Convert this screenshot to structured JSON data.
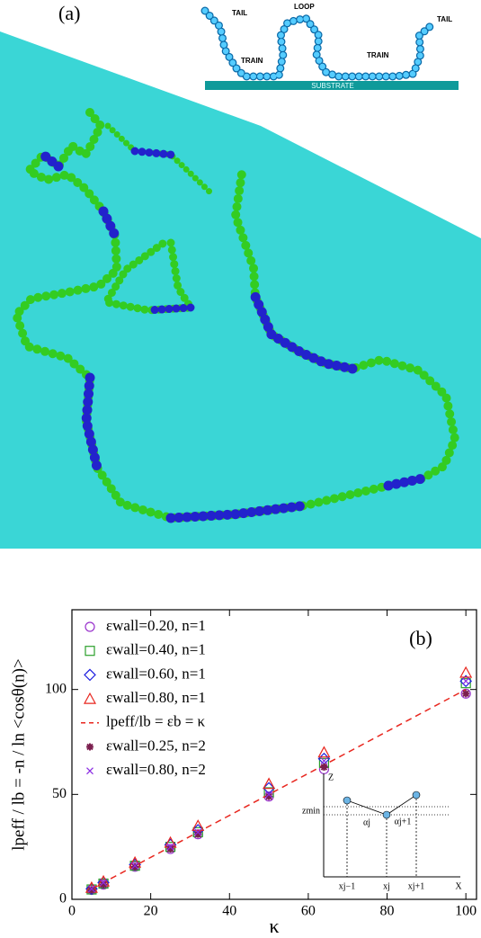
{
  "panel_a": {
    "label": "(a)",
    "schematic": {
      "tail_left": "TAIL",
      "loop": "LOOP",
      "train_left": "TRAIN",
      "train_right": "TRAIN",
      "tail_right": "TAIL",
      "substrate": "SUBSTRATE"
    }
  },
  "chart_data": {
    "type": "scatter",
    "panel_label": "(b)",
    "x_label": "κ",
    "y_label": "lpeff / lb = -n / ln <cosθ(n)>",
    "xlim": [
      0,
      102.7
    ],
    "ylim": [
      0,
      138
    ],
    "xticks": [
      0,
      20,
      40,
      60,
      80,
      100
    ],
    "yticks": [
      0,
      50,
      100
    ],
    "x": [
      5,
      8,
      16,
      25,
      32,
      50,
      64,
      100
    ],
    "series": [
      {
        "name": "εwall=0.20, n=1",
        "color": "#9932cc",
        "marker": "circle",
        "values": [
          4.5,
          7,
          15.5,
          24,
          31,
          49,
          62,
          98
        ]
      },
      {
        "name": "εwall=0.40, n=1",
        "color": "#2ca02c",
        "marker": "square",
        "values": [
          4.7,
          7.5,
          16,
          25,
          32,
          51,
          65,
          103
        ]
      },
      {
        "name": "εwall=0.60, n=1",
        "color": "#1f1fdf",
        "marker": "diamond",
        "values": [
          5,
          8,
          16.5,
          26,
          33,
          53,
          67,
          104
        ]
      },
      {
        "name": "εwall=0.80, n=1",
        "color": "#e8261e",
        "marker": "triangle",
        "values": [
          5.5,
          8.5,
          17.5,
          27,
          35,
          55,
          70,
          108
        ]
      },
      {
        "name": "lpeff/lb = εb = κ",
        "color": "#e8261e",
        "marker": "dashed-line",
        "x": [
          5,
          100
        ],
        "values": [
          5,
          100
        ]
      },
      {
        "name": "εwall=0.25, n=2",
        "color": "#7b1f4f",
        "marker": "star",
        "values": [
          4.5,
          7,
          15.5,
          24,
          31,
          49,
          63,
          98
        ]
      },
      {
        "name": "εwall=0.80, n=2",
        "color": "#8a2be2",
        "marker": "x",
        "values": [
          5,
          8,
          16,
          25,
          32,
          50,
          66,
          104
        ]
      }
    ],
    "inset": {
      "z": "Z",
      "zmin": "zmin",
      "alpha_j": "αj",
      "alpha_j1": "αj+1",
      "x_jm1": "xj−1",
      "x_j": "xj",
      "x_jp1": "xj+1",
      "x": "X"
    }
  }
}
